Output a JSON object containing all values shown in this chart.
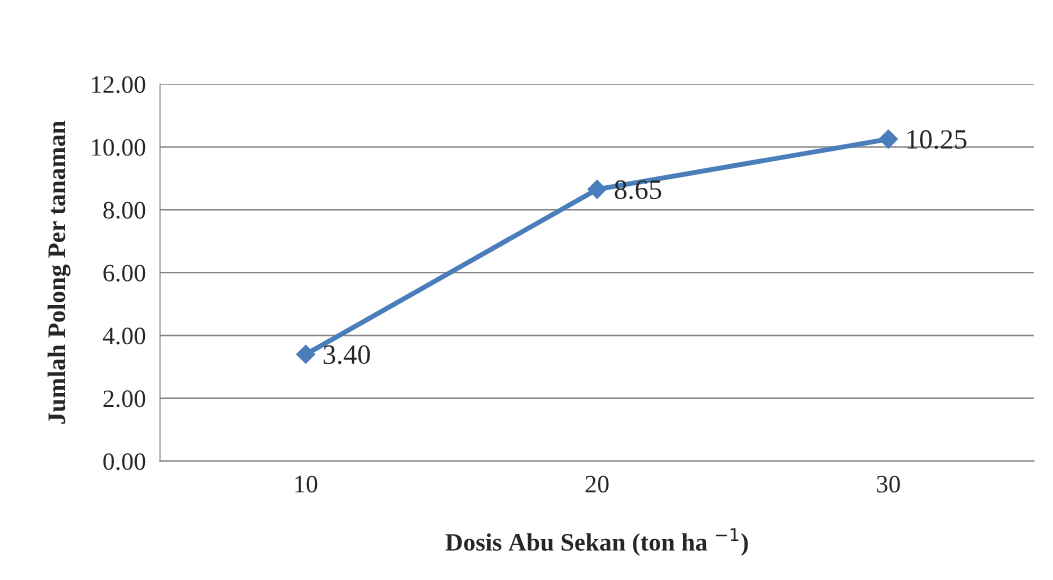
{
  "chart_data": {
    "type": "line",
    "xlabel": "Dosis Abu Sekan (ton ha $^{−1}$)",
    "ylabel": "Jumlah Polong Per tanaman",
    "categories": [
      "10",
      "20",
      "30"
    ],
    "series": [
      {
        "color": "#4a7ebb",
        "values": [
          3.4,
          8.65,
          10.25
        ],
        "value_labels": [
          "3.40",
          "8.65",
          "10.25"
        ]
      }
    ],
    "ylim": [
      0,
      12
    ],
    "yticks": [
      {
        "value": 0,
        "label": "0.00"
      },
      {
        "value": 2,
        "label": "2.00"
      },
      {
        "value": 4,
        "label": "4.00"
      },
      {
        "value": 6,
        "label": "6.00"
      },
      {
        "value": 8,
        "label": "8.00"
      },
      {
        "value": 10,
        "label": "10.00"
      },
      {
        "value": 12,
        "label": "12.00"
      }
    ],
    "grid": "y",
    "marker": "diamond",
    "line_style": "solid",
    "legend": false
  }
}
